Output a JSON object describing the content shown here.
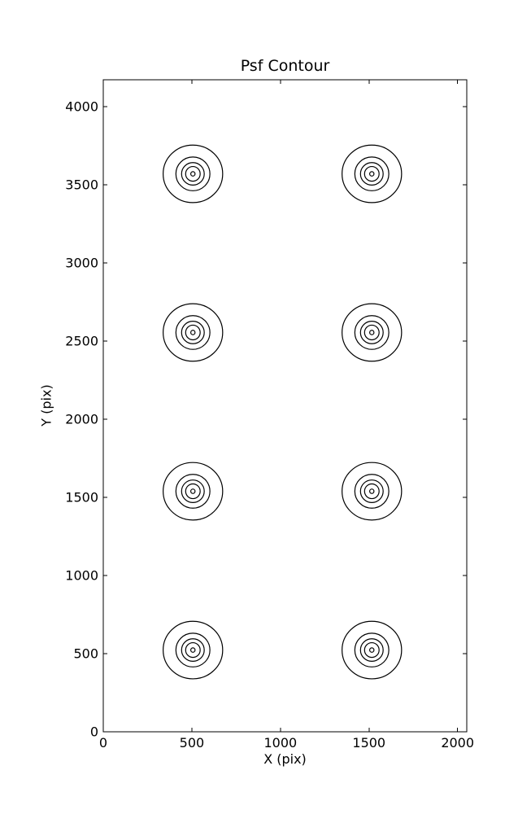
{
  "chart_data": {
    "type": "contour",
    "title": "Psf Contour",
    "xlabel": "X (pix)",
    "ylabel": "Y (pix)",
    "xlim": [
      0,
      2052
    ],
    "ylim": [
      0,
      4172
    ],
    "xticks": [
      0,
      500,
      1000,
      1500,
      2000
    ],
    "yticks": [
      0,
      500,
      1000,
      1500,
      2000,
      2500,
      3000,
      3500,
      4000
    ],
    "grid": false,
    "legend": "none",
    "tick_direction": "in",
    "line_color": "#000000",
    "background": "#ffffff",
    "psf_grid": {
      "description": "8 PSF contour clusters in a 2x4 grid of concentric rings",
      "centers_x": [
        506,
        1516
      ],
      "centers_y": [
        523,
        1539,
        2555,
        3570
      ],
      "n_contour_levels": 5,
      "contour_radii_x": [
        168,
        96,
        64,
        41,
        12
      ],
      "contour_radii_y": [
        184,
        108,
        72,
        47,
        14
      ]
    }
  }
}
